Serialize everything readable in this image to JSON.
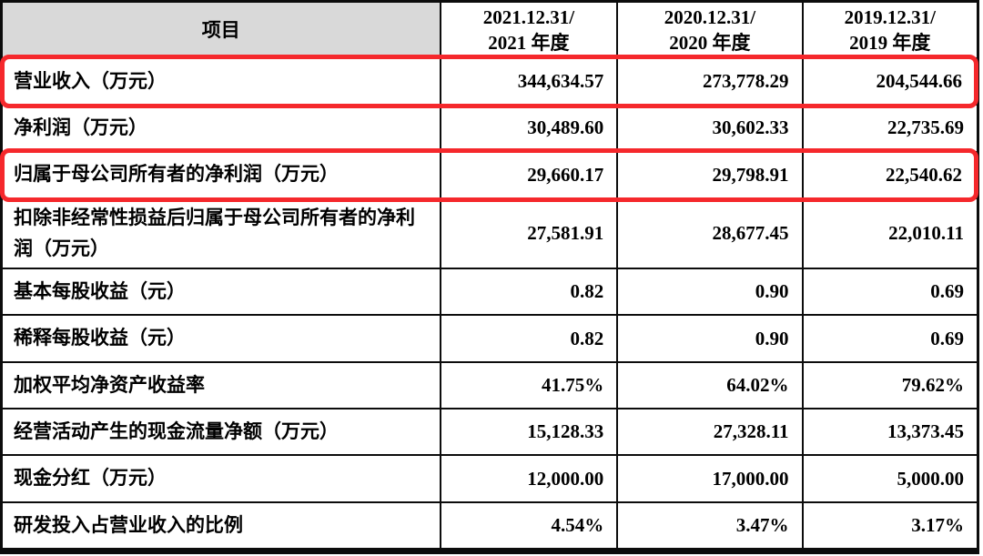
{
  "table": {
    "header": {
      "item_label": "项目",
      "periods": [
        "2021.12.31/\n2021 年度",
        "2020.12.31/\n2020 年度",
        "2019.12.31/\n2019 年度"
      ]
    },
    "rows": [
      {
        "label": "营业收入（万元）",
        "values": [
          "344,634.57",
          "273,778.29",
          "204,544.66"
        ],
        "highlight": true
      },
      {
        "label": "净利润（万元）",
        "values": [
          "30,489.60",
          "30,602.33",
          "22,735.69"
        ],
        "highlight": false
      },
      {
        "label": "归属于母公司所有者的净利润（万元）",
        "values": [
          "29,660.17",
          "29,798.91",
          "22,540.62"
        ],
        "highlight": true
      },
      {
        "label": "扣除非经常性损益后归属于母公司所有者的净利润（万元）",
        "values": [
          "27,581.91",
          "28,677.45",
          "22,010.11"
        ],
        "highlight": false
      },
      {
        "label": "基本每股收益（元）",
        "values": [
          "0.82",
          "0.90",
          "0.69"
        ],
        "highlight": false
      },
      {
        "label": "稀释每股收益（元）",
        "values": [
          "0.82",
          "0.90",
          "0.69"
        ],
        "highlight": false
      },
      {
        "label": "加权平均净资产收益率",
        "values": [
          "41.75%",
          "64.02%",
          "79.62%"
        ],
        "highlight": false
      },
      {
        "label": "经营活动产生的现金流量净额（万元）",
        "values": [
          "15,128.33",
          "27,328.11",
          "13,373.45"
        ],
        "highlight": false
      },
      {
        "label": "现金分红（万元）",
        "values": [
          "12,000.00",
          "17,000.00",
          "5,000.00"
        ],
        "highlight": false
      },
      {
        "label": "研发投入占营业收入的比例",
        "values": [
          "4.54%",
          "3.47%",
          "3.17%"
        ],
        "highlight": false
      }
    ]
  },
  "colors": {
    "highlight_border": "#f5282c",
    "header_cell_bg": "#d9d9d9",
    "table_border": "#0c0c0c"
  }
}
